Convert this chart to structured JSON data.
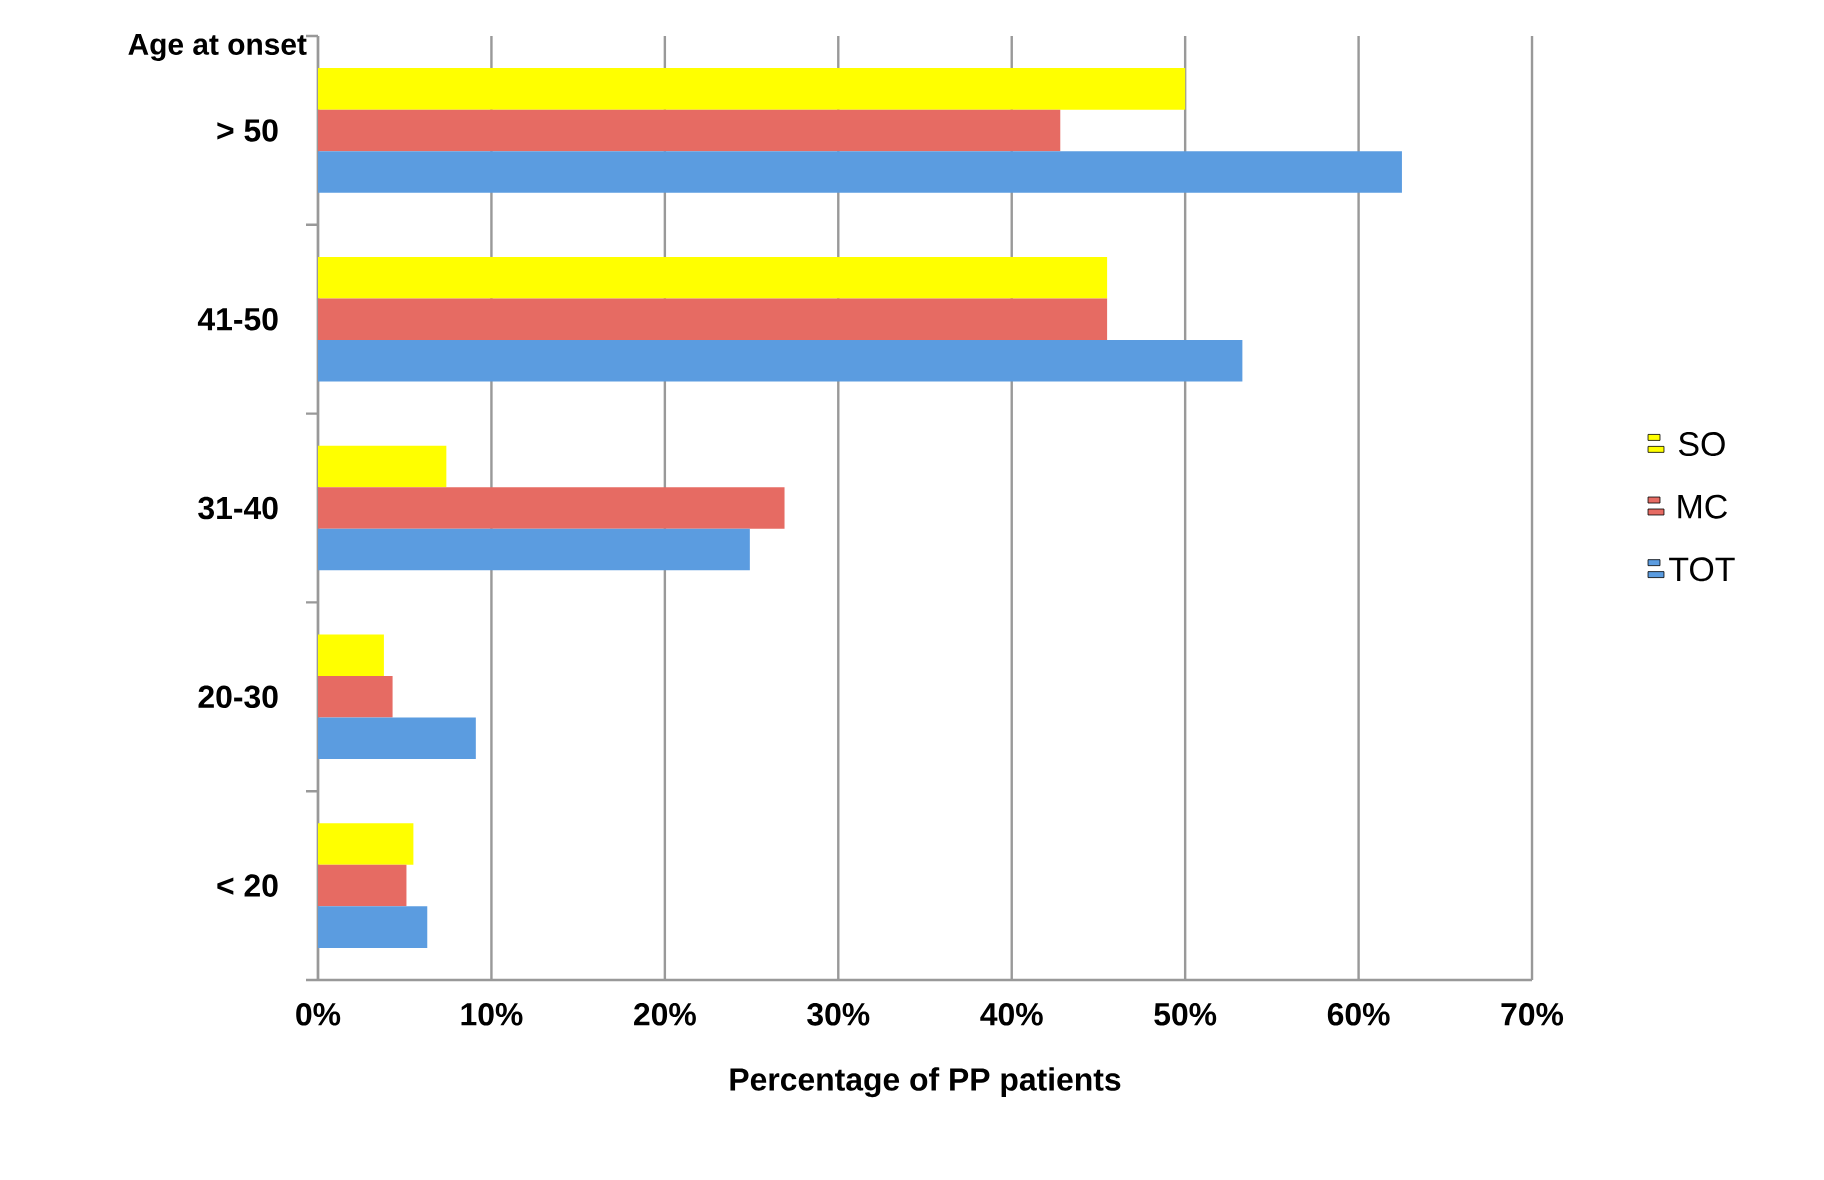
{
  "chart_data": {
    "type": "bar",
    "orientation": "horizontal",
    "xlabel": "Percentage of PP patients",
    "ylabel": "Age at onset",
    "categories": [
      "> 50",
      "41-50",
      "31-40",
      "20-30",
      "< 20"
    ],
    "series": [
      {
        "name": "SO",
        "color": "#ffff00",
        "values": [
          50,
          45.5,
          7.4,
          3.8,
          5.5
        ]
      },
      {
        "name": "MC",
        "color": "#e66b63",
        "values": [
          42.8,
          45.5,
          26.9,
          4.3,
          5.1
        ]
      },
      {
        "name": "TOT",
        "color": "#5b9ce0",
        "values": [
          62.5,
          53.3,
          24.9,
          9.1,
          6.3
        ]
      }
    ],
    "xlim": [
      0,
      70
    ],
    "xticks": [
      {
        "value": 0,
        "label": "0%"
      },
      {
        "value": 10,
        "label": "10%"
      },
      {
        "value": 20,
        "label": "20%"
      },
      {
        "value": 30,
        "label": "30%"
      },
      {
        "value": 40,
        "label": "40%"
      },
      {
        "value": 50,
        "label": "50%"
      },
      {
        "value": 60,
        "label": "60%"
      },
      {
        "value": 70,
        "label": "70%"
      }
    ],
    "grid": "x",
    "legend": "right"
  }
}
